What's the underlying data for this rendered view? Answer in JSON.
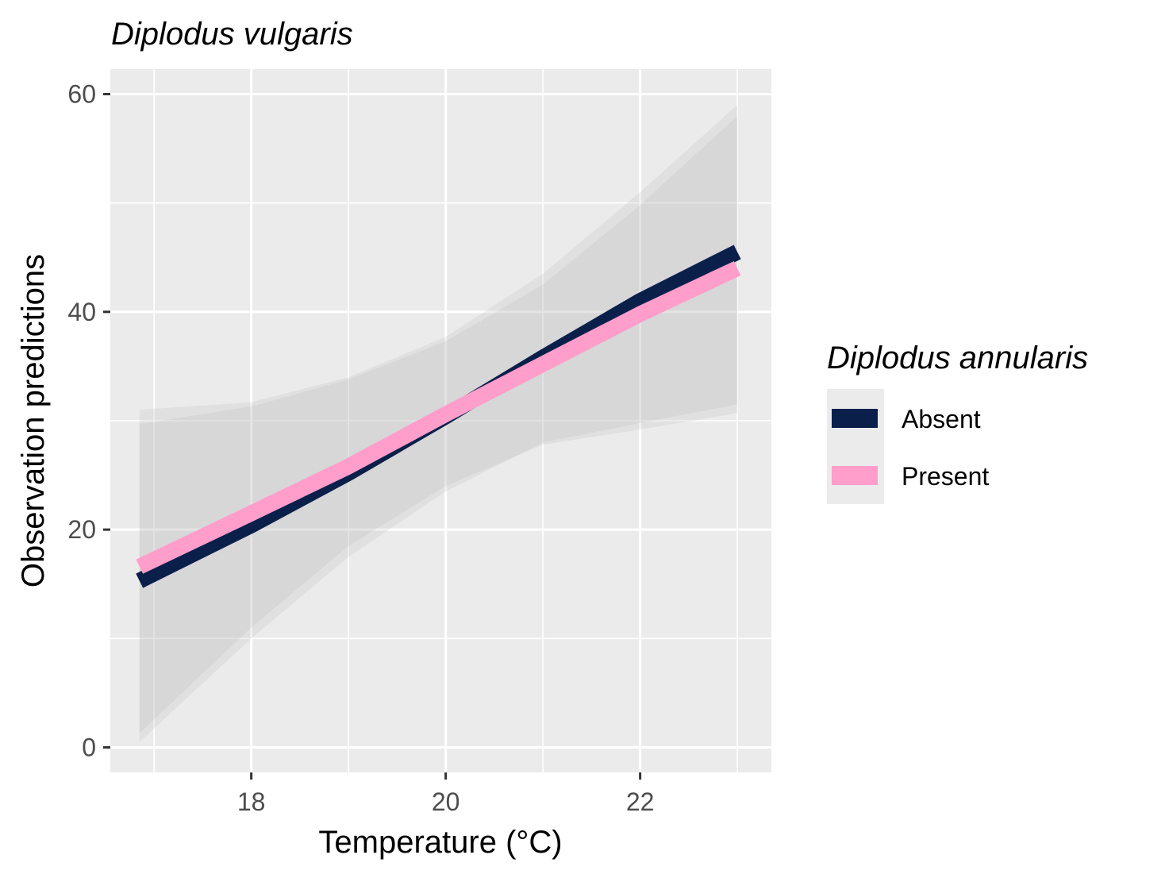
{
  "chart_data": {
    "type": "line",
    "title": "Diplodus vulgaris",
    "xlabel": "Temperature (°C)",
    "ylabel": "Observation predictions",
    "xlim": [
      16.55,
      23.35
    ],
    "ylim": [
      -2.3,
      62.3
    ],
    "x_ticks": [
      18,
      20,
      22
    ],
    "x_tick_labels": [
      "18",
      "20",
      "22"
    ],
    "y_ticks": [
      0,
      20,
      40,
      60
    ],
    "y_tick_labels": [
      "0",
      "20",
      "40",
      "60"
    ],
    "grid": true,
    "legend": {
      "title": "Diplodus annularis",
      "placement": "right",
      "entries": [
        "Absent",
        "Present"
      ]
    },
    "series": [
      {
        "name": "Absent",
        "color": "#0a1f4a",
        "x": [
          16.85,
          18.0,
          19.0,
          20.0,
          21.0,
          22.0,
          23.0
        ],
        "y": [
          15.3,
          20.4,
          25.2,
          30.4,
          35.8,
          41.0,
          45.5
        ],
        "ci_upper": [
          31.0,
          31.7,
          34.0,
          37.7,
          43.5,
          51.0,
          59.0
        ],
        "ci_lower": [
          0.5,
          10.0,
          17.5,
          23.5,
          28.0,
          29.8,
          31.5
        ]
      },
      {
        "name": "Present",
        "color": "#ff9ecb",
        "x": [
          16.85,
          18.0,
          19.0,
          20.0,
          21.0,
          22.0,
          23.0
        ],
        "y": [
          16.6,
          21.5,
          25.8,
          30.6,
          35.2,
          39.8,
          44.0
        ],
        "ci_upper": [
          29.7,
          31.3,
          33.8,
          37.3,
          42.5,
          49.8,
          58.0
        ],
        "ci_lower": [
          1.3,
          11.0,
          18.5,
          24.0,
          27.8,
          29.2,
          30.7
        ]
      }
    ]
  }
}
